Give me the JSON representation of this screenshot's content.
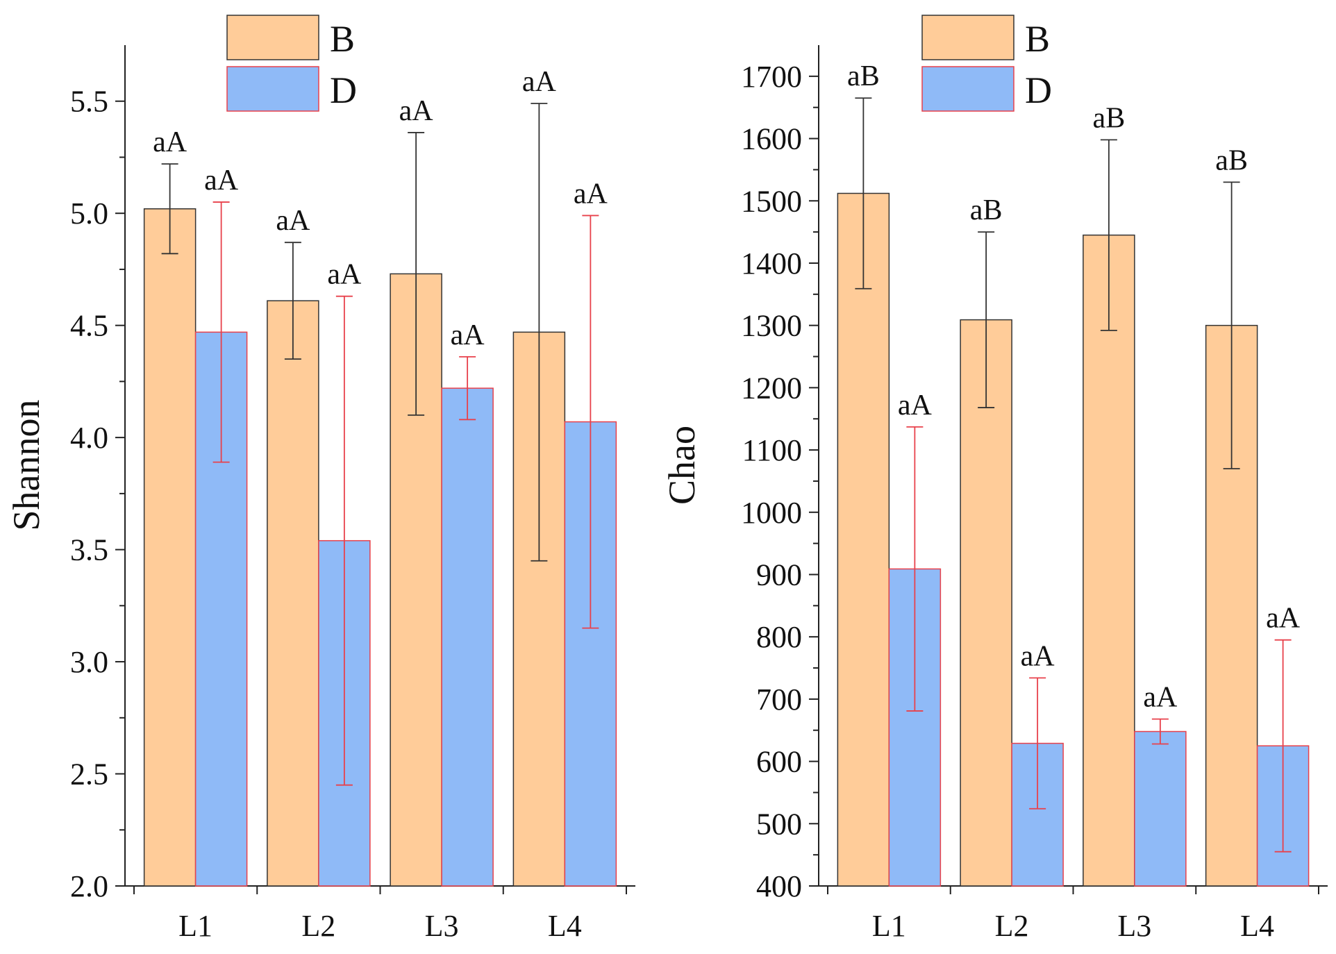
{
  "colors": {
    "B_fill": "#FFCC99",
    "B_stroke": "#333333",
    "B_error": "#333333",
    "D_fill": "#8FBAF7",
    "D_stroke": "#E8414B",
    "D_error": "#E8414B",
    "axis": "#222222"
  },
  "chart_data": [
    {
      "type": "bar",
      "ylabel": "Shannon",
      "xlabel": "",
      "title": "",
      "categories": [
        "L1",
        "L2",
        "L3",
        "L4"
      ],
      "ylim": [
        2.0,
        5.75
      ],
      "yticks": [
        "2.0",
        "2.5",
        "3.0",
        "3.5",
        "4.0",
        "4.5",
        "5.0",
        "5.5"
      ],
      "legend": [
        "B",
        "D"
      ],
      "legend_position": "top-center",
      "series": [
        {
          "name": "B",
          "values": [
            5.02,
            4.61,
            4.73,
            4.47
          ],
          "errors": [
            0.2,
            0.26,
            0.63,
            1.02
          ],
          "labels": [
            "aA",
            "aA",
            "aA",
            "aA"
          ]
        },
        {
          "name": "D",
          "values": [
            4.47,
            3.54,
            4.22,
            4.07
          ],
          "errors": [
            0.58,
            1.09,
            0.14,
            0.92
          ],
          "labels": [
            "aA",
            "aA",
            "aA",
            "aA"
          ]
        }
      ]
    },
    {
      "type": "bar",
      "ylabel": "Chao",
      "xlabel": "",
      "title": "",
      "categories": [
        "L1",
        "L2",
        "L3",
        "L4"
      ],
      "ylim": [
        400,
        1750
      ],
      "yticks": [
        "400",
        "500",
        "600",
        "700",
        "800",
        "900",
        "1000",
        "1100",
        "1200",
        "1300",
        "1400",
        "1500",
        "1600",
        "1700"
      ],
      "legend": [
        "B",
        "D"
      ],
      "legend_position": "top-center",
      "series": [
        {
          "name": "B",
          "values": [
            1512,
            1309,
            1445,
            1300
          ],
          "errors": [
            153,
            141,
            153,
            230
          ],
          "labels": [
            "aB",
            "aB",
            "aB",
            "aB"
          ]
        },
        {
          "name": "D",
          "values": [
            909,
            629,
            648,
            625
          ],
          "errors": [
            228,
            105,
            20,
            170
          ],
          "labels": [
            "aA",
            "aA",
            "aA",
            "aA"
          ]
        }
      ]
    }
  ]
}
